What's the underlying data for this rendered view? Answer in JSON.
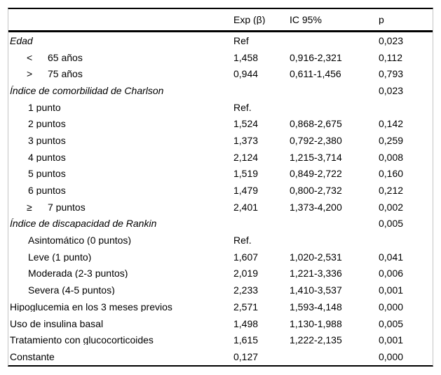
{
  "table": {
    "headers": {
      "variable": "",
      "exp": "Exp (β)",
      "ic": "IC 95%",
      "p": "p"
    },
    "rows": [
      {
        "label": "Edad",
        "style": "italic",
        "indent": 0,
        "symbol": "",
        "exp": "Ref",
        "ic": "",
        "p": "0,023"
      },
      {
        "label": "65 años",
        "style": "normal",
        "indent": 1,
        "symbol": "<",
        "exp": "1,458",
        "ic": "0,916-2,321",
        "p": "0,112"
      },
      {
        "label": "75 años",
        "style": "normal",
        "indent": 1,
        "symbol": ">",
        "exp": "0,944",
        "ic": "0,611-1,456",
        "p": "0,793"
      },
      {
        "label": "Índice de comorbilidad de Charlson",
        "style": "italic",
        "indent": 0,
        "symbol": "",
        "exp": "",
        "ic": "",
        "p": "0,023"
      },
      {
        "label": "1 punto",
        "style": "normal",
        "indent": 1,
        "symbol": "",
        "exp": "Ref.",
        "ic": "",
        "p": ""
      },
      {
        "label": "2 puntos",
        "style": "normal",
        "indent": 1,
        "symbol": "",
        "exp": "1,524",
        "ic": "0,868-2,675",
        "p": "0,142"
      },
      {
        "label": "3 puntos",
        "style": "normal",
        "indent": 1,
        "symbol": "",
        "exp": "1,373",
        "ic": "0,792-2,380",
        "p": "0,259"
      },
      {
        "label": "4 puntos",
        "style": "normal",
        "indent": 1,
        "symbol": "",
        "exp": "2,124",
        "ic": "1,215-3,714",
        "p": "0,008"
      },
      {
        "label": "5 puntos",
        "style": "normal",
        "indent": 1,
        "symbol": "",
        "exp": "1,519",
        "ic": "0,849-2,722",
        "p": "0,160"
      },
      {
        "label": "6 puntos",
        "style": "normal",
        "indent": 1,
        "symbol": "",
        "exp": "1,479",
        "ic": "0,800-2,732",
        "p": "0,212"
      },
      {
        "label": "7 puntos",
        "style": "normal",
        "indent": 1,
        "symbol": "≥",
        "exp": "2,401",
        "ic": "1,373-4,200",
        "p": "0,002"
      },
      {
        "label": "Índice de discapacidad de Rankin",
        "style": "italic",
        "indent": 0,
        "symbol": "",
        "exp": "",
        "ic": "",
        "p": "0,005"
      },
      {
        "label": "Asintomático (0 puntos)",
        "style": "normal",
        "indent": 1,
        "symbol": "",
        "exp": "Ref.",
        "ic": "",
        "p": ""
      },
      {
        "label": "Leve (1 punto)",
        "style": "normal",
        "indent": 1,
        "symbol": "",
        "exp": "1,607",
        "ic": "1,020-2,531",
        "p": "0,041"
      },
      {
        "label": "Moderada (2-3 puntos)",
        "style": "normal",
        "indent": 1,
        "symbol": "",
        "exp": "2,019",
        "ic": "1,221-3,336",
        "p": "0,006"
      },
      {
        "label": "Severa (4-5 puntos)",
        "style": "normal",
        "indent": 1,
        "symbol": "",
        "exp": "2,233",
        "ic": "1,410-3,537",
        "p": "0,001"
      },
      {
        "label": "Hipoglucemia en los 3 meses previos",
        "style": "normal",
        "indent": 0,
        "symbol": "",
        "exp": "2,571",
        "ic": "1,593-4,148",
        "p": "0,000"
      },
      {
        "label": "Uso de insulina basal",
        "style": "normal",
        "indent": 0,
        "symbol": "",
        "exp": "1,498",
        "ic": "1,130-1,988",
        "p": "0,005"
      },
      {
        "label": "Tratamiento con glucocorticoides",
        "style": "normal",
        "indent": 0,
        "symbol": "",
        "exp": "1,615",
        "ic": "1,222-2,135",
        "p": "0,001"
      },
      {
        "label": "Constante",
        "style": "normal",
        "indent": 0,
        "symbol": "",
        "exp": "0,127",
        "ic": "",
        "p": "0,000"
      }
    ],
    "colors": {
      "rule": "#000000",
      "frame_border": "#c4c4c4",
      "text": "#000000",
      "background": "#ffffff"
    }
  }
}
